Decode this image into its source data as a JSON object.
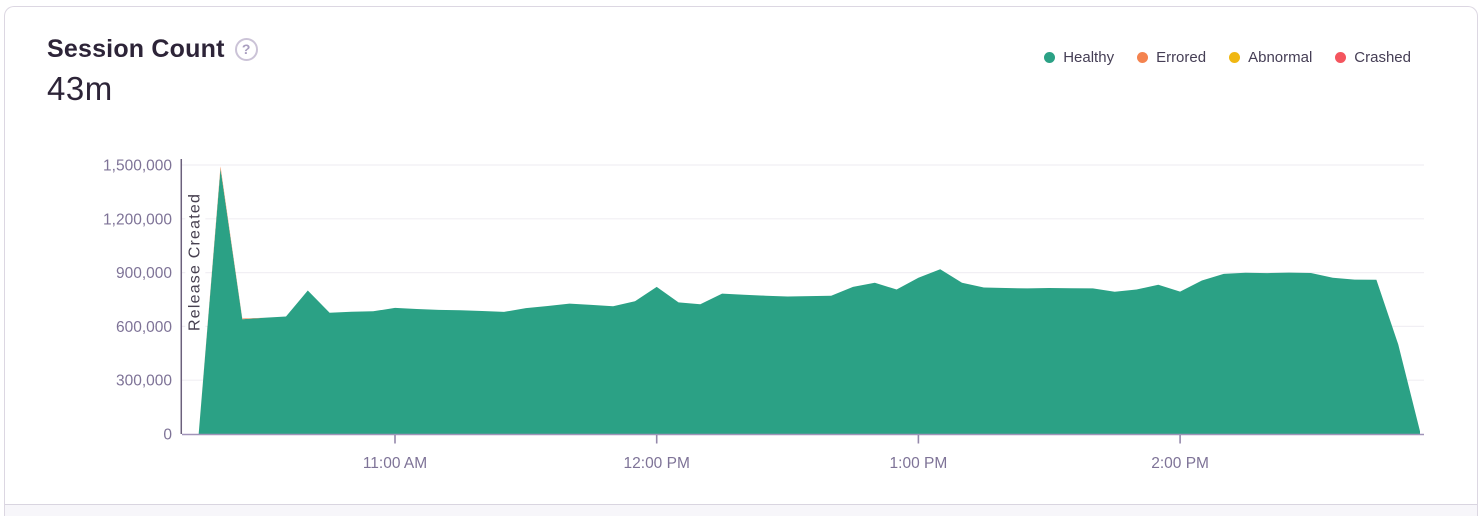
{
  "header": {
    "title": "Session Count",
    "total": "43m",
    "help_glyph": "?"
  },
  "legend": [
    {
      "label": "Healthy",
      "color": "#2BA185"
    },
    {
      "label": "Errored",
      "color": "#F4834F"
    },
    {
      "label": "Abnormal",
      "color": "#F0B712"
    },
    {
      "label": "Crashed",
      "color": "#F4555E"
    }
  ],
  "colors": {
    "healthy": "#2BA185",
    "errored": "#F4834F",
    "abnormal": "#F0B712",
    "crashed": "#F4555E",
    "axis_line": "#a194b9",
    "tick": "#9488ab",
    "grid": "#f1eff4",
    "axis_label": "#7e7397",
    "release_line": "#6b607c",
    "release_text": "#474050",
    "title_text": "#2d2438"
  },
  "chart_data": {
    "type": "area",
    "stacked": true,
    "title": "Session Count",
    "total_label": "43m",
    "ylabel": "",
    "xlabel": "",
    "ylim": [
      0,
      1500000
    ],
    "grid": true,
    "legend_position": "top-right",
    "x_minutes": [
      615,
      620,
      625,
      630,
      635,
      640,
      645,
      650,
      655,
      660,
      665,
      670,
      675,
      680,
      685,
      690,
      695,
      700,
      705,
      710,
      715,
      720,
      725,
      730,
      735,
      740,
      745,
      750,
      755,
      760,
      765,
      770,
      775,
      780,
      785,
      790,
      795,
      800,
      805,
      810,
      815,
      820,
      825,
      830,
      835,
      840,
      845,
      850,
      855,
      860,
      865,
      870,
      875,
      880,
      885,
      890,
      895
    ],
    "series": [
      {
        "name": "Healthy",
        "color": "#2BA185",
        "values": [
          2000,
          1480000,
          640000,
          648000,
          655000,
          800000,
          676000,
          682000,
          684000,
          703000,
          697000,
          692000,
          690000,
          686000,
          681000,
          702000,
          714000,
          727000,
          720000,
          712000,
          740000,
          820000,
          734000,
          723000,
          783000,
          777000,
          771000,
          767000,
          769000,
          771000,
          820000,
          843000,
          806000,
          871000,
          919000,
          843000,
          817000,
          814000,
          812000,
          814000,
          813000,
          812000,
          793000,
          806000,
          832000,
          794000,
          856000,
          893000,
          899000,
          897000,
          900000,
          898000,
          871000,
          861000,
          860000,
          500000,
          15000
        ]
      },
      {
        "name": "Errored",
        "color": "#F4834F",
        "values": [
          0,
          12000,
          4000,
          0,
          0,
          0,
          0,
          0,
          0,
          0,
          0,
          0,
          0,
          0,
          0,
          0,
          0,
          0,
          0,
          0,
          0,
          0,
          0,
          0,
          0,
          0,
          0,
          0,
          0,
          0,
          0,
          0,
          0,
          0,
          0,
          0,
          0,
          0,
          0,
          0,
          0,
          0,
          0,
          0,
          0,
          0,
          0,
          0,
          0,
          0,
          0,
          0,
          0,
          0,
          0,
          0,
          0
        ]
      },
      {
        "name": "Abnormal",
        "color": "#F0B712",
        "values": [
          0,
          0,
          0,
          0,
          0,
          0,
          0,
          0,
          0,
          0,
          0,
          0,
          0,
          0,
          0,
          0,
          0,
          0,
          0,
          0,
          0,
          0,
          0,
          0,
          0,
          0,
          0,
          0,
          0,
          0,
          0,
          0,
          0,
          0,
          0,
          0,
          0,
          0,
          0,
          0,
          0,
          0,
          0,
          0,
          0,
          0,
          0,
          0,
          0,
          0,
          0,
          0,
          0,
          0,
          0,
          0,
          0
        ]
      },
      {
        "name": "Crashed",
        "color": "#F4555E",
        "values": [
          0,
          0,
          0,
          0,
          0,
          0,
          0,
          0,
          0,
          0,
          0,
          0,
          0,
          0,
          0,
          0,
          0,
          0,
          0,
          0,
          0,
          0,
          0,
          0,
          0,
          0,
          0,
          0,
          0,
          0,
          0,
          0,
          0,
          0,
          0,
          0,
          0,
          0,
          0,
          0,
          0,
          0,
          0,
          0,
          0,
          0,
          0,
          0,
          0,
          0,
          0,
          0,
          0,
          0,
          0,
          0,
          0
        ]
      }
    ],
    "yticks": [
      {
        "value": 0,
        "label": "0"
      },
      {
        "value": 300000,
        "label": "300,000"
      },
      {
        "value": 600000,
        "label": "600,000"
      },
      {
        "value": 900000,
        "label": "900,000"
      },
      {
        "value": 1200000,
        "label": "1,200,000"
      },
      {
        "value": 1500000,
        "label": "1,500,000"
      }
    ],
    "xticks": [
      {
        "minutes": 660,
        "label": "11:00 AM"
      },
      {
        "minutes": 720,
        "label": "12:00 PM"
      },
      {
        "minutes": 780,
        "label": "1:00 PM"
      },
      {
        "minutes": 840,
        "label": "2:00 PM"
      }
    ],
    "annotation": {
      "label": "Release Created",
      "minutes": 611
    }
  }
}
